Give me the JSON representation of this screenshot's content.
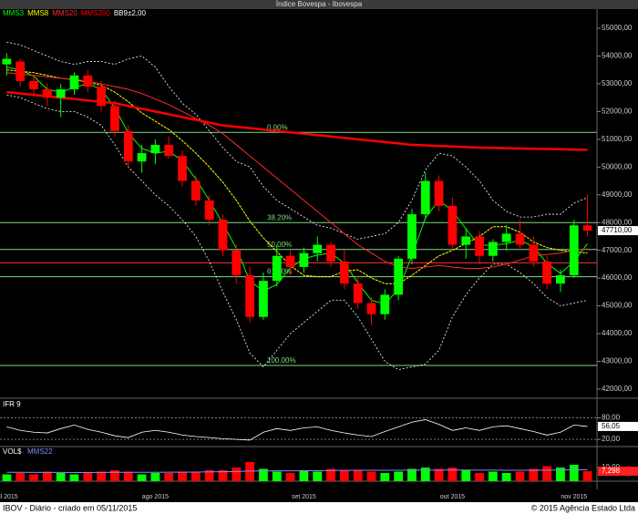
{
  "window_title": "Índice Bovespa - Ibovespa",
  "footer": {
    "left": "IBOV - Diário - criado em 05/11/2015",
    "right": "© 2015 Agência Estado Ltda"
  },
  "chart_data": [
    {
      "type": "candlestick",
      "categories": [
        "jul 2015",
        null,
        null,
        null,
        null,
        null,
        null,
        null,
        null,
        null,
        null,
        "ago 2015",
        null,
        null,
        null,
        null,
        null,
        null,
        null,
        null,
        null,
        null,
        "set 2015",
        null,
        null,
        null,
        null,
        null,
        null,
        null,
        null,
        null,
        null,
        "out 2015",
        null,
        null,
        null,
        null,
        null,
        null,
        null,
        null,
        "nov 2015",
        null
      ],
      "open": [
        53700,
        53800,
        53100,
        52800,
        52500,
        52800,
        53300,
        52900,
        52200,
        51300,
        50200,
        50500,
        50800,
        50400,
        49500,
        48800,
        48100,
        47000,
        46100,
        44600,
        45900,
        46800,
        46400,
        46900,
        47200,
        46600,
        45800,
        45100,
        44700,
        45400,
        46700,
        48300,
        49500,
        48600,
        47200,
        47500,
        46800,
        47300,
        47600,
        47200,
        46600,
        45800,
        46100,
        47900
      ],
      "high": [
        54100,
        53900,
        53300,
        53000,
        53000,
        53400,
        53500,
        53100,
        52400,
        51500,
        50800,
        51000,
        51100,
        50600,
        49700,
        49000,
        48300,
        47200,
        46400,
        46200,
        47200,
        47000,
        47100,
        47500,
        47300,
        47000,
        46100,
        45300,
        45600,
        46800,
        48500,
        49800,
        49700,
        48900,
        47800,
        47700,
        47400,
        47900,
        48100,
        47500,
        46800,
        46300,
        48100,
        49000
      ],
      "low": [
        53300,
        52900,
        52600,
        52200,
        51800,
        52600,
        52700,
        52000,
        51100,
        50000,
        49800,
        50100,
        50300,
        49300,
        48600,
        47900,
        46800,
        45800,
        44400,
        44500,
        45700,
        46100,
        46200,
        46600,
        46400,
        45600,
        44900,
        44300,
        44500,
        45200,
        46500,
        48100,
        48400,
        47000,
        46700,
        46500,
        46600,
        47000,
        47000,
        46400,
        45600,
        45500,
        46000,
        47500
      ],
      "close": [
        53900,
        53100,
        52800,
        52500,
        52800,
        53300,
        52900,
        52200,
        51300,
        50200,
        50500,
        50800,
        50400,
        49500,
        48800,
        48100,
        47000,
        46100,
        44600,
        45900,
        46800,
        46400,
        46900,
        47200,
        46600,
        45800,
        45100,
        44700,
        45400,
        46700,
        48300,
        49500,
        48600,
        47200,
        47500,
        46800,
        47300,
        47600,
        47200,
        46600,
        45800,
        46100,
        47900,
        47710
      ],
      "last_label": "47710,00",
      "up_color": "#00ff00",
      "down_color": "#ff0000",
      "series": [
        {
          "name": "MMS3",
          "color": "#00ff00",
          "values": [
            53600,
            53500,
            53270,
            52800,
            52700,
            52870,
            53000,
            52800,
            52130,
            51230,
            50670,
            50500,
            50570,
            50230,
            49570,
            48800,
            47970,
            47070,
            45900,
            45530,
            45770,
            46370,
            46700,
            46830,
            46900,
            46530,
            45830,
            45200,
            45070,
            45600,
            46800,
            48170,
            48800,
            48430,
            47770,
            47170,
            47200,
            47230,
            47370,
            47130,
            46530,
            46170,
            46600,
            47240
          ]
        },
        {
          "name": "MMS8",
          "color": "#ffff00",
          "values": [
            53500,
            53450,
            53400,
            53300,
            53200,
            53150,
            53050,
            52950,
            52700,
            52350,
            51950,
            51650,
            51350,
            50950,
            50500,
            50000,
            49450,
            48800,
            48050,
            47450,
            46950,
            46450,
            46100,
            46050,
            46050,
            46250,
            46300,
            46000,
            45800,
            45800,
            46100,
            46450,
            46800,
            47000,
            47250,
            47500,
            47850,
            47850,
            47650,
            47300,
            47100,
            47000,
            46950,
            46900
          ]
        },
        {
          "name": "MMS20",
          "color": "#ff2a2a",
          "values": [
            53400,
            53350,
            53300,
            53250,
            53200,
            53150,
            53100,
            53000,
            52900,
            52800,
            52650,
            52450,
            52250,
            52000,
            51750,
            51500,
            51200,
            50800,
            50400,
            50000,
            49600,
            49200,
            48800,
            48400,
            48000,
            47600,
            47200,
            46900,
            46600,
            46400,
            46350,
            46400,
            46450,
            46400,
            46350,
            46350,
            46400,
            46500,
            46650,
            46800,
            46850,
            46900,
            47000,
            47050
          ]
        },
        {
          "name": "MMS200",
          "color": "#ff0000",
          "values": [
            52700,
            52650,
            52600,
            52550,
            52500,
            52450,
            52400,
            52350,
            52300,
            52200,
            52100,
            52000,
            51900,
            51800,
            51700,
            51600,
            51500,
            51450,
            51400,
            51350,
            51300,
            51250,
            51200,
            51150,
            51100,
            51050,
            51000,
            50950,
            50900,
            50850,
            50800,
            50780,
            50760,
            50740,
            50720,
            50700,
            50690,
            50680,
            50670,
            50660,
            50650,
            50640,
            50630,
            50620
          ]
        }
      ],
      "bands": {
        "name": "BB9±2,00",
        "color": "#ffffff",
        "upper": [
          54500,
          54400,
          54200,
          54000,
          53800,
          53700,
          53800,
          53800,
          53700,
          53900,
          54000,
          53600,
          52900,
          52300,
          51900,
          51300,
          50700,
          50200,
          50000,
          49300,
          48800,
          48500,
          48200,
          47900,
          47800,
          47600,
          47400,
          47500,
          47600,
          48000,
          48800,
          49900,
          50500,
          50400,
          50000,
          49500,
          48800,
          48400,
          48200,
          48200,
          48300,
          48300,
          48700,
          48900
        ],
        "lower": [
          52600,
          52500,
          52300,
          52100,
          52000,
          52000,
          51800,
          51500,
          50800,
          50000,
          49500,
          49000,
          48600,
          48100,
          47500,
          46600,
          45500,
          44500,
          43300,
          42800,
          43400,
          44000,
          44400,
          44800,
          45200,
          45200,
          44600,
          43800,
          43000,
          42700,
          42800,
          42900,
          43400,
          44600,
          45400,
          46000,
          46500,
          46500,
          46200,
          45800,
          45300,
          45000,
          45100,
          45200
        ]
      },
      "fibonacci": [
        {
          "label": "0.00%",
          "price": 51250
        },
        {
          "label": "38.20%",
          "price": 48000
        },
        {
          "label": "50.00%",
          "price": 47030
        },
        {
          "label": "61.80%",
          "price": 46050
        },
        {
          "label": "100.00%",
          "price": 42850
        }
      ],
      "fib_color": "#7ddc7d",
      "reference_line": 46550,
      "reference_color": "#ff3030",
      "ylim": [
        41670,
        55690
      ],
      "yticks": [
        {
          "value": 42000,
          "label": "42000,00"
        },
        {
          "value": 43000,
          "label": "43000,00"
        },
        {
          "value": 44000,
          "label": "44000,00"
        },
        {
          "value": 45000,
          "label": "45000,00"
        },
        {
          "value": 46000,
          "label": "46000,00"
        },
        {
          "value": 47000,
          "label": "47000,00"
        },
        {
          "value": 48000,
          "label": "48000,00"
        },
        {
          "value": 49000,
          "label": "49000,00"
        },
        {
          "value": 50000,
          "label": "50000,00"
        },
        {
          "value": 51000,
          "label": "51000,00"
        },
        {
          "value": 52000,
          "label": "52000,00"
        },
        {
          "value": 53000,
          "label": "53000,00"
        },
        {
          "value": 54000,
          "label": "54000,00"
        },
        {
          "value": 55000,
          "label": "55000,00"
        }
      ]
    },
    {
      "type": "line",
      "title": "IFR 9",
      "series": [
        {
          "color": "#ffffff",
          "values": [
            55,
            45,
            40,
            38,
            50,
            60,
            48,
            40,
            30,
            25,
            40,
            45,
            40,
            32,
            28,
            25,
            22,
            20,
            18,
            40,
            50,
            45,
            52,
            55,
            45,
            38,
            32,
            28,
            42,
            55,
            68,
            75,
            62,
            45,
            52,
            45,
            55,
            58,
            50,
            42,
            32,
            40,
            60,
            56.05
          ]
        }
      ],
      "last_label": "56,05",
      "ylim": [
        0,
        127
      ],
      "yticks": [
        {
          "value": 80,
          "label": "80,00"
        },
        {
          "value": 20,
          "label": "20,00"
        }
      ]
    },
    {
      "type": "bar",
      "title": "VOL$",
      "values": [
        5,
        6,
        5,
        7,
        6,
        5,
        6,
        7,
        8,
        7,
        5,
        6,
        6,
        7,
        7,
        8,
        8,
        10,
        14,
        9,
        7,
        6,
        8,
        7,
        9,
        8,
        8,
        7,
        6,
        7,
        9,
        10,
        9,
        10,
        8,
        6,
        7,
        6,
        7,
        9,
        11,
        10,
        12,
        7.298
      ],
      "last_label": "7,298",
      "series": [
        {
          "name": "MMS22",
          "color": "#8888ff",
          "values": [
            6.5,
            6.5,
            6.4,
            6.4,
            6.4,
            6.3,
            6.3,
            6.4,
            6.5,
            6.5,
            6.5,
            6.5,
            6.6,
            6.6,
            6.7,
            6.8,
            6.9,
            7.1,
            7.4,
            7.5,
            7.6,
            7.6,
            7.7,
            7.7,
            7.8,
            7.9,
            8.0,
            8.0,
            8.0,
            8.0,
            8.1,
            8.1,
            8.1,
            8.2,
            8.2,
            8.1,
            8.1,
            8.0,
            8.0,
            8.0,
            8.1,
            8.2,
            8.3,
            8.3
          ]
        }
      ],
      "ylim": [
        0,
        24
      ],
      "yticks": [
        {
          "value": 10,
          "label": "10,00"
        }
      ]
    }
  ]
}
